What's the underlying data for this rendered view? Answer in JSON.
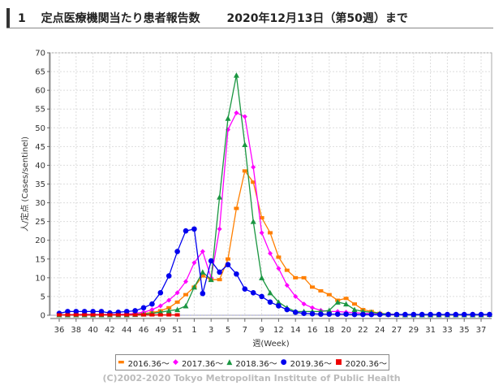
{
  "header": {
    "number": "1",
    "title": "定点医療機関当たり患者報告数",
    "date_text": "2020年12月13日（第50週）まで"
  },
  "footer": {
    "copyright": "(C)2002-2020 Tokyo Metropolitan Institute of Public Health"
  },
  "chart_data": {
    "type": "line",
    "title": "定点医療機関当たり患者報告数",
    "xlabel": "週(Week)",
    "ylabel": "人/定点 (Cases/sentinel)",
    "ylim": [
      0,
      70
    ],
    "yticks": [
      0,
      5,
      10,
      15,
      20,
      25,
      30,
      35,
      40,
      45,
      50,
      55,
      60,
      65,
      70
    ],
    "xtick_labels": [
      "36",
      "38",
      "40",
      "42",
      "44",
      "46",
      "49",
      "51",
      "1",
      "3",
      "5",
      "7",
      "9",
      "12",
      "14",
      "16",
      "18",
      "20",
      "22",
      "24",
      "27",
      "29",
      "31",
      "33",
      "35",
      "37"
    ],
    "grid": true,
    "legend_position": "bottom",
    "series": [
      {
        "name": "2016.36～",
        "color": "#ff7f00",
        "marker": "square",
        "values": [
          0.1,
          0.1,
          0.2,
          0.2,
          0.2,
          0.2,
          0.2,
          0.2,
          0.3,
          0.4,
          0.5,
          0.7,
          1.2,
          2.0,
          3.5,
          5.5,
          7.5,
          10.5,
          9.5,
          9.5,
          15,
          28.5,
          38.5,
          35.5,
          26,
          22,
          15.5,
          12,
          10,
          10,
          7.5,
          6.5,
          5.5,
          4,
          4.5,
          3,
          1.5,
          1,
          0.5,
          0.3,
          0.2,
          0.1,
          0.1,
          0.1,
          0.1,
          0.1,
          0.1,
          0.1,
          0.1,
          0.1,
          0.1,
          0.1
        ]
      },
      {
        "name": "2017.36～",
        "color": "#ff00ff",
        "marker": "diamond",
        "values": [
          0.1,
          0.1,
          0.2,
          0.2,
          0.2,
          0.2,
          0.2,
          0.2,
          0.3,
          0.5,
          0.8,
          1.5,
          2.5,
          4,
          6,
          9,
          14,
          17,
          10,
          23,
          49.5,
          54,
          53,
          39.5,
          22,
          16.5,
          12.5,
          8,
          5,
          3,
          2,
          1.3,
          1,
          1,
          0.8,
          0.7,
          0.5,
          0.4,
          0.3,
          0.2,
          0.1,
          0.1,
          0.1,
          0.1,
          0.1,
          0.1,
          0.1,
          0.1,
          0.1,
          0.1,
          0.1,
          0.1
        ]
      },
      {
        "name": "2018.36～",
        "color": "#1a9641",
        "marker": "triangle",
        "values": [
          0.1,
          0.1,
          0.1,
          0.1,
          0.1,
          0.1,
          0.1,
          0.1,
          0.1,
          0.2,
          0.3,
          0.5,
          0.8,
          1.2,
          1.5,
          2.5,
          7.5,
          11.5,
          9.5,
          31.5,
          52.5,
          64,
          45.5,
          25,
          10,
          6,
          3.5,
          2,
          1,
          1,
          1,
          1,
          1.3,
          3.5,
          3,
          1.5,
          1,
          0.8,
          0.5,
          0.3,
          0.2,
          0.1,
          0.1,
          0.1,
          0.1,
          0.1,
          0.1,
          0.1,
          0.1,
          0.1,
          0.1,
          0.2
        ]
      },
      {
        "name": "2019.36～",
        "color": "#0000ee",
        "marker": "circle",
        "values": [
          0.5,
          1,
          1,
          1,
          1,
          1,
          0.6,
          0.8,
          1,
          1.2,
          2,
          3,
          6,
          10.5,
          17,
          22.5,
          23,
          5.8,
          14.5,
          11.5,
          13.5,
          11,
          7,
          6,
          5,
          3.5,
          2.5,
          1.5,
          0.8,
          0.5,
          0.4,
          0.3,
          0.3,
          0.3,
          0.3,
          0.2,
          0.2,
          0.2,
          0.2,
          0.2,
          0.2,
          0.2,
          0.2,
          0.2,
          0.2,
          0.2,
          0.2,
          0.2,
          0.2,
          0.2,
          0.2,
          0.2
        ]
      },
      {
        "name": "2020.36～",
        "color": "#ee0000",
        "marker": "square",
        "values": [
          0.1,
          0.1,
          0.1,
          0.1,
          0.1,
          0.1,
          0.1,
          0.1,
          0.1,
          0.1,
          0.1,
          0.1,
          0.1,
          0.1,
          0.1
        ]
      }
    ]
  }
}
